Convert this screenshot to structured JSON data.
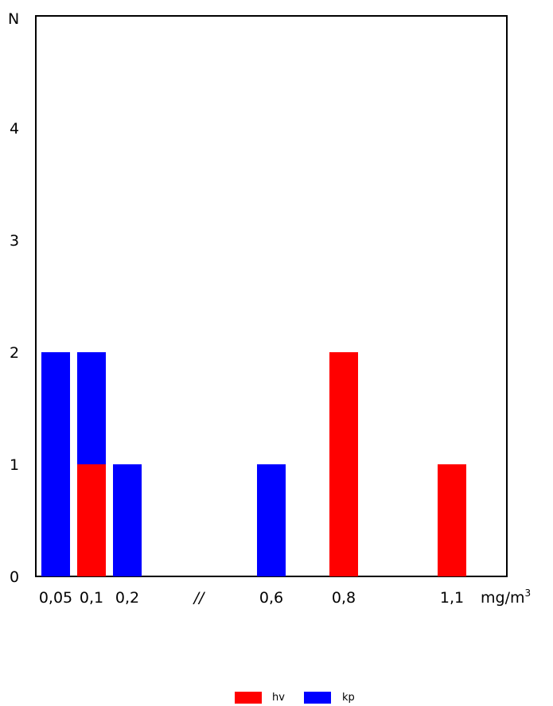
{
  "chart_data": {
    "type": "bar",
    "stacked": true,
    "ylabel": "N",
    "xlabel": "mg/m",
    "xlabel_sup": "3",
    "yticks": [
      "0",
      "1",
      "2",
      "3",
      "4"
    ],
    "ylim": [
      0,
      5
    ],
    "categories": [
      "0,05",
      "0,1",
      "0,2",
      "//",
      "0,6",
      "0,8",
      "1,1"
    ],
    "series": [
      {
        "name": "hv",
        "color": "#ff0000",
        "values": [
          0,
          1,
          0,
          0,
          0,
          2,
          1
        ]
      },
      {
        "name": "kp",
        "color": "#0000ff",
        "values": [
          2,
          1,
          1,
          0,
          1,
          0,
          0
        ]
      }
    ],
    "grid": false,
    "legend_position": "bottom-center"
  }
}
